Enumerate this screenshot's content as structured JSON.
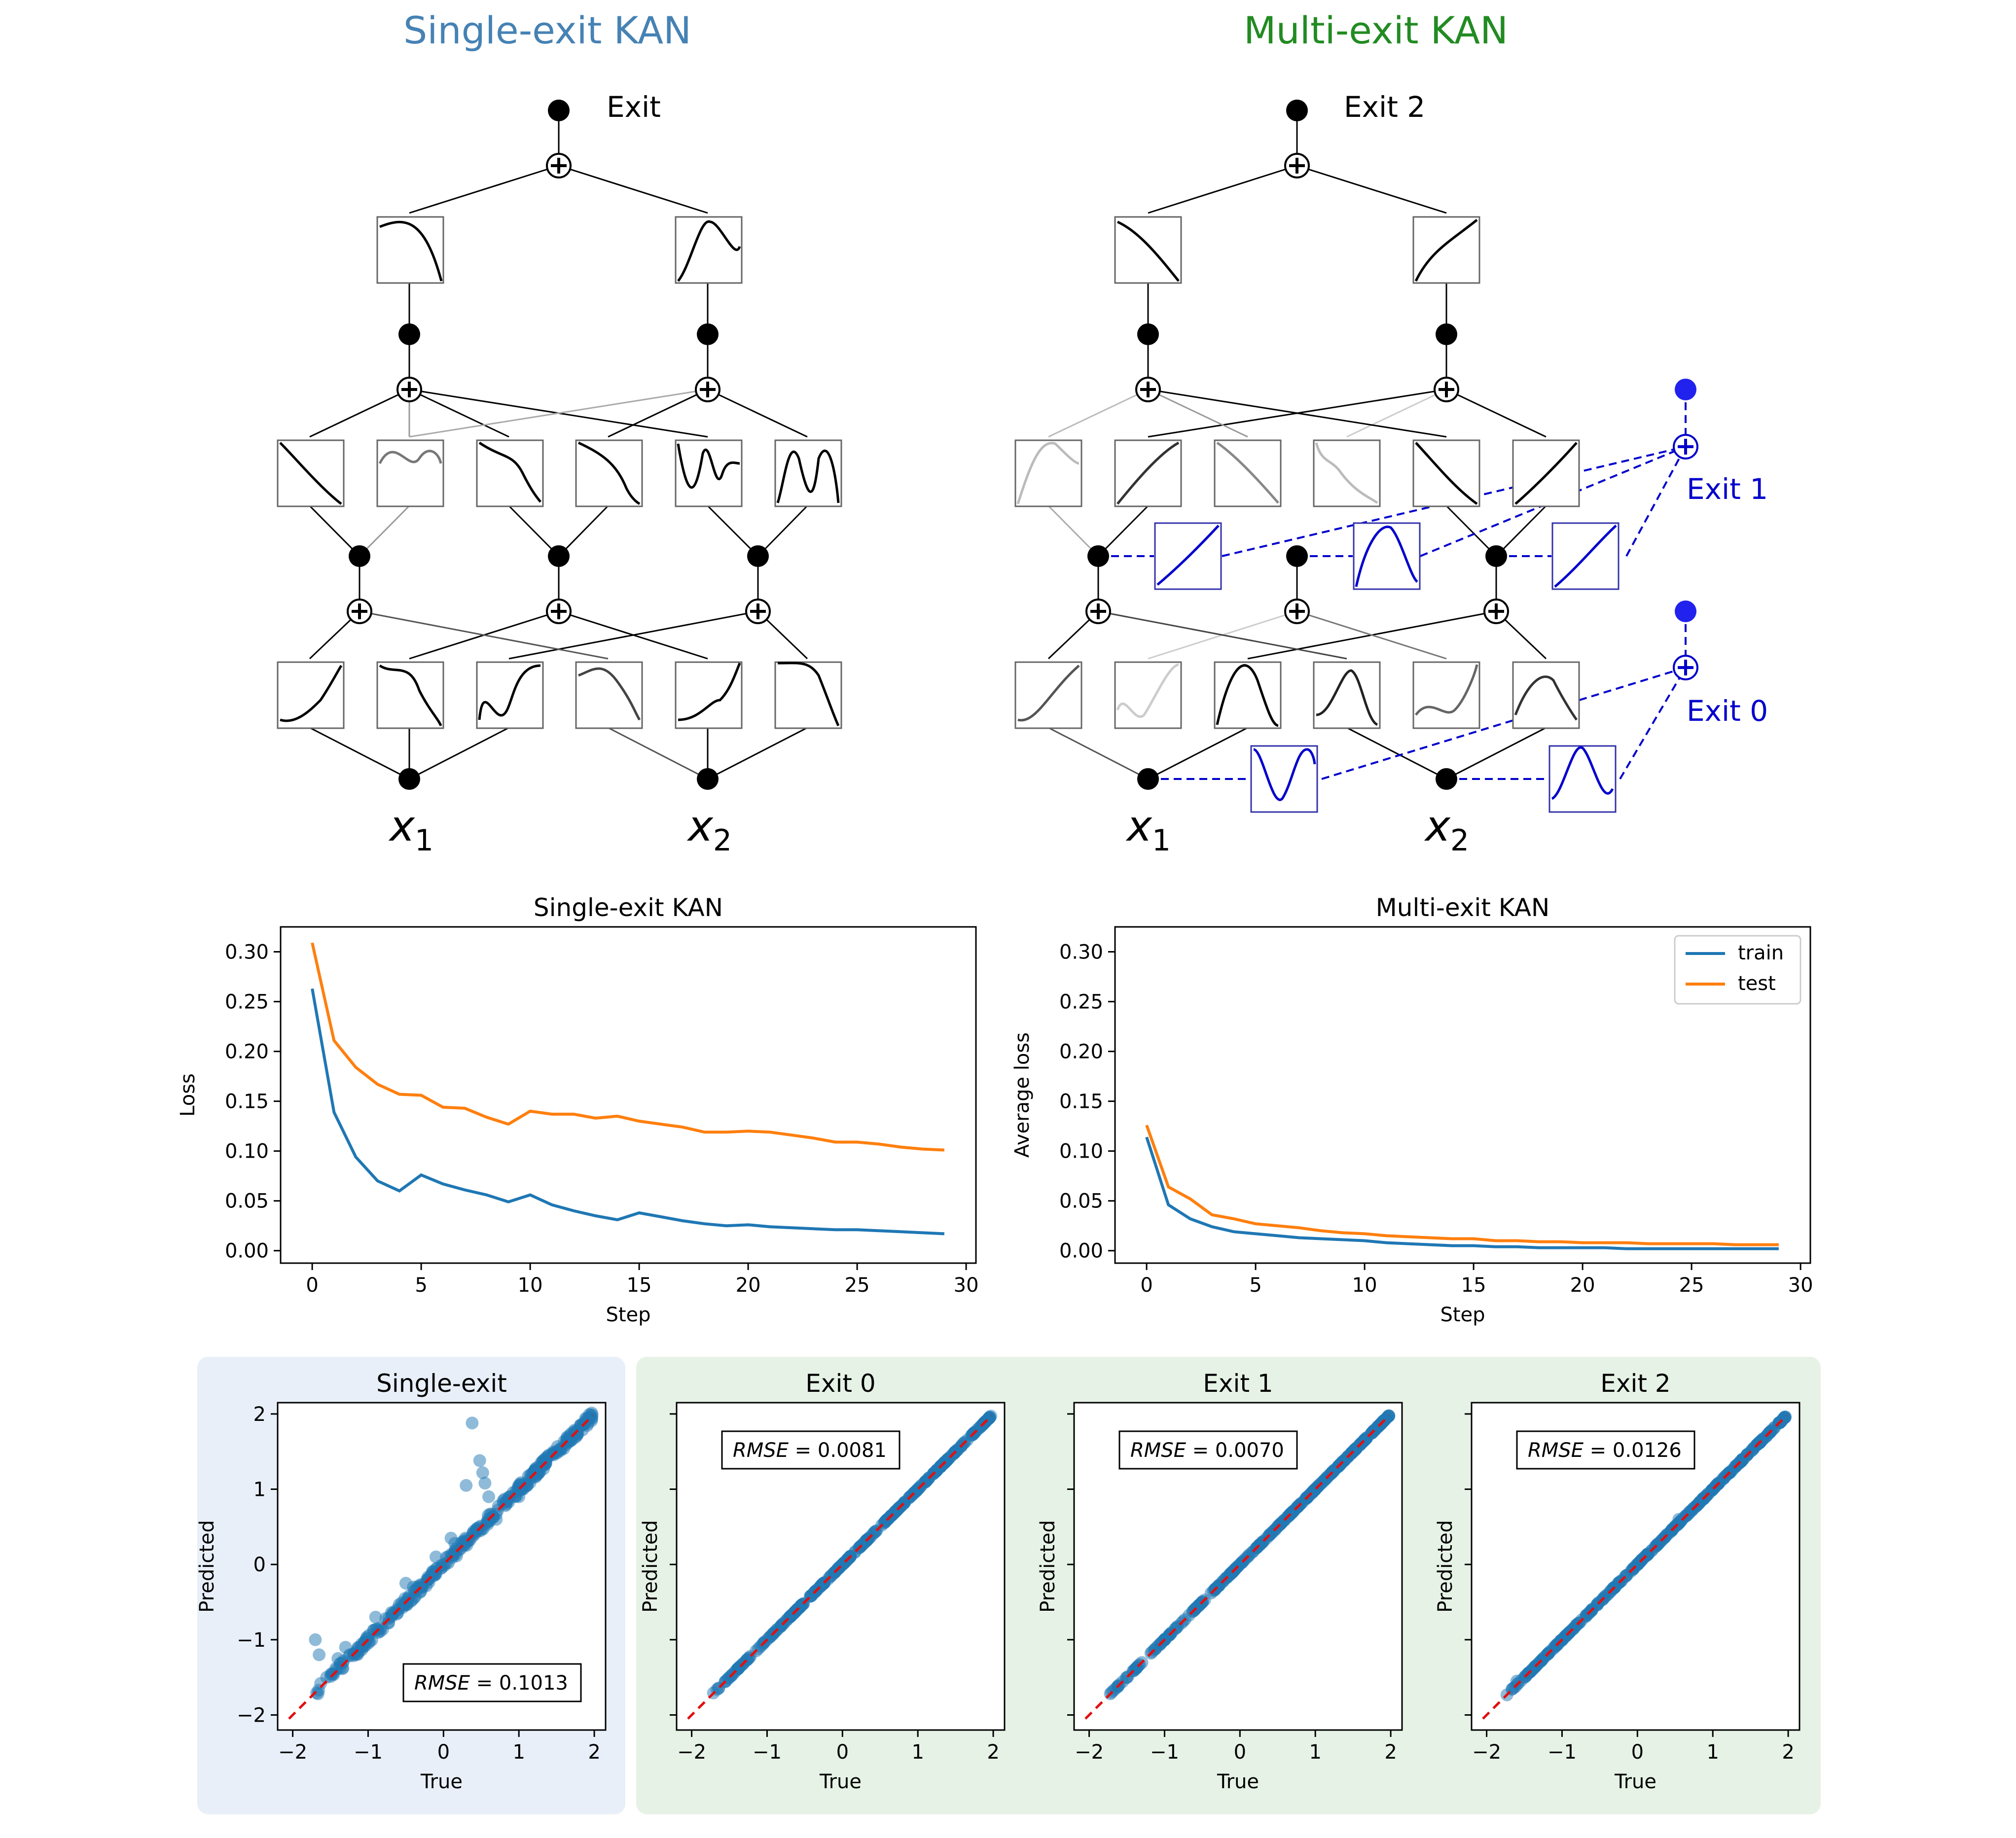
{
  "diagram": {
    "single_title": "Single-exit KAN",
    "multi_title": "Multi-exit KAN",
    "single_exit_label": "Exit",
    "multi_exit_labels": [
      "Exit 0",
      "Exit 1",
      "Exit 2"
    ],
    "input_base": "x",
    "input_subscripts": [
      "1",
      "2"
    ],
    "colors": {
      "single_title": "#4682b4",
      "multi_title": "#228b22",
      "exit_branch": "#0000cc"
    }
  },
  "chart_data": [
    {
      "type": "line",
      "title": "Single-exit KAN",
      "xlabel": "Step",
      "ylabel": "Loss",
      "xlim": [
        -1.45,
        30.45
      ],
      "ylim": [
        -0.0125,
        0.325
      ],
      "xticks": [
        "0",
        "5",
        "10",
        "15",
        "20",
        "25",
        "30"
      ],
      "yticks": [
        "0.00",
        "0.05",
        "0.10",
        "0.15",
        "0.20",
        "0.25",
        "0.30"
      ],
      "x": [
        0,
        1,
        2,
        3,
        4,
        5,
        6,
        7,
        8,
        9,
        10,
        11,
        12,
        13,
        14,
        15,
        16,
        17,
        18,
        19,
        20,
        21,
        22,
        23,
        24,
        25,
        26,
        27,
        28,
        29
      ],
      "series": [
        {
          "color": "#1f77b4",
          "values": [
            0.263,
            0.139,
            0.094,
            0.07,
            0.06,
            0.076,
            0.067,
            0.061,
            0.056,
            0.049,
            0.056,
            0.046,
            0.04,
            0.035,
            0.031,
            0.038,
            0.034,
            0.03,
            0.027,
            0.025,
            0.026,
            0.024,
            0.023,
            0.022,
            0.021,
            0.021,
            0.02,
            0.019,
            0.018,
            0.017
          ]
        },
        {
          "color": "#ff7f0e",
          "values": [
            0.309,
            0.211,
            0.184,
            0.167,
            0.157,
            0.156,
            0.144,
            0.143,
            0.134,
            0.127,
            0.14,
            0.137,
            0.137,
            0.133,
            0.135,
            0.13,
            0.127,
            0.124,
            0.119,
            0.119,
            0.12,
            0.119,
            0.116,
            0.113,
            0.109,
            0.109,
            0.107,
            0.104,
            0.102,
            0.101
          ]
        }
      ],
      "legend": "none",
      "grid": false
    },
    {
      "type": "line",
      "title": "Multi-exit KAN",
      "xlabel": "Step",
      "ylabel": "Average loss",
      "xlim": [
        -1.45,
        30.45
      ],
      "ylim": [
        -0.0125,
        0.325
      ],
      "xticks": [
        "0",
        "5",
        "10",
        "15",
        "20",
        "25",
        "30"
      ],
      "yticks": [
        "0.00",
        "0.05",
        "0.10",
        "0.15",
        "0.20",
        "0.25",
        "0.30"
      ],
      "x": [
        0,
        1,
        2,
        3,
        4,
        5,
        6,
        7,
        8,
        9,
        10,
        11,
        12,
        13,
        14,
        15,
        16,
        17,
        18,
        19,
        20,
        21,
        22,
        23,
        24,
        25,
        26,
        27,
        28,
        29
      ],
      "series": [
        {
          "name": "train",
          "color": "#1f77b4",
          "values": [
            0.114,
            0.046,
            0.032,
            0.024,
            0.019,
            0.017,
            0.015,
            0.013,
            0.012,
            0.011,
            0.01,
            0.008,
            0.007,
            0.006,
            0.005,
            0.005,
            0.004,
            0.004,
            0.003,
            0.003,
            0.003,
            0.003,
            0.002,
            0.002,
            0.002,
            0.002,
            0.002,
            0.002,
            0.002,
            0.002
          ]
        },
        {
          "name": "test",
          "color": "#ff7f0e",
          "values": [
            0.126,
            0.064,
            0.052,
            0.036,
            0.032,
            0.027,
            0.025,
            0.023,
            0.02,
            0.018,
            0.017,
            0.015,
            0.014,
            0.013,
            0.012,
            0.012,
            0.01,
            0.01,
            0.009,
            0.009,
            0.008,
            0.008,
            0.008,
            0.007,
            0.007,
            0.007,
            0.007,
            0.006,
            0.006,
            0.006
          ]
        }
      ],
      "legend": "top-right",
      "grid": false
    },
    {
      "type": "scatter",
      "title": "Single-exit",
      "xlabel": "True",
      "ylabel": "Predicted",
      "xlim": [
        -2.2,
        2.15
      ],
      "ylim": [
        -2.2,
        2.15
      ],
      "xticks": [
        "−2",
        "−1",
        "0",
        "1",
        "2"
      ],
      "yticks": [
        "−2",
        "−1",
        "0",
        "1",
        "2"
      ],
      "annotation": {
        "label": "RMSE",
        "value": " = 0.1013"
      },
      "rmse": 0.1013,
      "reference_line": "y = x",
      "points": [
        [
          0.38,
          1.88
        ],
        [
          0.48,
          1.38
        ],
        [
          0.52,
          1.22
        ],
        [
          0.55,
          1.08
        ],
        [
          0.3,
          1.05
        ],
        [
          0.6,
          0.9
        ],
        [
          -0.4,
          -0.3
        ],
        [
          -0.2,
          -0.2
        ],
        [
          -0.1,
          0.1
        ],
        [
          0.1,
          0.35
        ],
        [
          -1.7,
          -1.0
        ],
        [
          -1.65,
          -1.2
        ],
        [
          -1.55,
          -1.5
        ],
        [
          -1.4,
          -1.25
        ],
        [
          -1.3,
          -1.1
        ],
        [
          -0.9,
          -0.7
        ],
        [
          -0.5,
          -0.25
        ],
        [
          0.15,
          0.28
        ],
        [
          0.7,
          0.6
        ],
        [
          1.0,
          0.9
        ]
      ]
    },
    {
      "type": "scatter",
      "title": "Exit 0",
      "xlabel": "True",
      "ylabel": "Predicted",
      "xlim": [
        -2.2,
        2.15
      ],
      "ylim": [
        -2.2,
        2.15
      ],
      "xticks": [
        "−2",
        "−1",
        "0",
        "1",
        "2"
      ],
      "annotation": {
        "label": "RMSE",
        "value": " = 0.0081"
      },
      "rmse": 0.0081,
      "reference_line": "y = x",
      "points": []
    },
    {
      "type": "scatter",
      "title": "Exit 1",
      "xlabel": "True",
      "ylabel": "Predicted",
      "xlim": [
        -2.2,
        2.15
      ],
      "ylim": [
        -2.2,
        2.15
      ],
      "xticks": [
        "−2",
        "−1",
        "0",
        "1",
        "2"
      ],
      "annotation": {
        "label": "RMSE",
        "value": " = 0.0070"
      },
      "rmse": 0.007,
      "reference_line": "y = x",
      "points": []
    },
    {
      "type": "scatter",
      "title": "Exit 2",
      "xlabel": "True",
      "ylabel": "Predicted",
      "xlim": [
        -2.2,
        2.15
      ],
      "ylim": [
        -2.2,
        2.15
      ],
      "xticks": [
        "−2",
        "−1",
        "0",
        "1",
        "2"
      ],
      "annotation": {
        "label": "RMSE",
        "value": " = 0.0126"
      },
      "rmse": 0.0126,
      "reference_line": "y = x",
      "points": [
        [
          -1.6,
          -1.55
        ],
        [
          -1.5,
          -1.5
        ],
        [
          0.55,
          0.6
        ]
      ]
    }
  ]
}
